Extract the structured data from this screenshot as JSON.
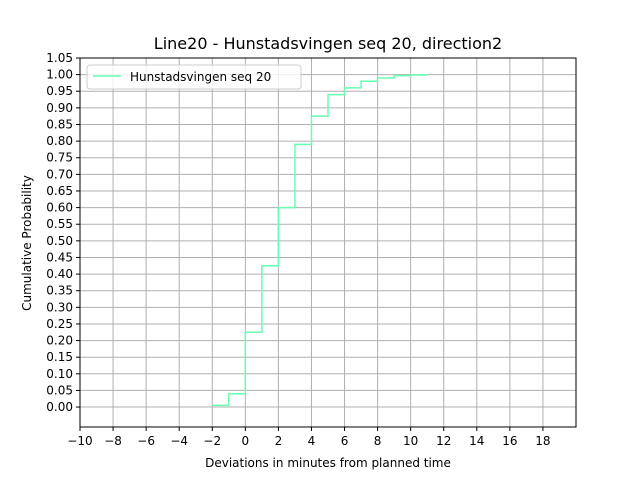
{
  "chart_data": {
    "type": "line",
    "drawstyle": "steps-post",
    "title": "Line20 - Hunstadsvingen seq 20, direction2",
    "xlabel": "Deviations in minutes from planned time",
    "ylabel": "Cumulative Probability",
    "xlim": [
      -10,
      20
    ],
    "ylim": [
      -0.06,
      1.05
    ],
    "grid": true,
    "legend_position": "top-left",
    "xticks": [
      -10,
      -8,
      -6,
      -4,
      -2,
      0,
      2,
      4,
      6,
      8,
      10,
      12,
      14,
      16,
      18
    ],
    "xtick_labels": [
      "−10",
      "−8",
      "−6",
      "−4",
      "−2",
      "0",
      "2",
      "4",
      "6",
      "8",
      "10",
      "12",
      "14",
      "16",
      "18"
    ],
    "yticks": [
      0.0,
      0.05,
      0.1,
      0.15,
      0.2,
      0.25,
      0.3,
      0.35,
      0.4,
      0.45,
      0.5,
      0.55,
      0.6,
      0.65,
      0.7,
      0.75,
      0.8,
      0.85,
      0.9,
      0.95,
      1.0,
      1.05
    ],
    "ytick_labels": [
      "0.00",
      "0.05",
      "0.10",
      "0.15",
      "0.20",
      "0.25",
      "0.30",
      "0.35",
      "0.40",
      "0.45",
      "0.50",
      "0.55",
      "0.60",
      "0.65",
      "0.70",
      "0.75",
      "0.80",
      "0.85",
      "0.90",
      "0.95",
      "1.00",
      "1.05"
    ],
    "series": [
      {
        "name": "Hunstadsvingen seq 20",
        "color": "#66ffb2",
        "x": [
          -2,
          -1,
          0,
          1,
          2,
          3,
          4,
          5,
          6,
          7,
          8,
          9,
          10,
          11
        ],
        "y": [
          0.005,
          0.04,
          0.225,
          0.425,
          0.6,
          0.79,
          0.875,
          0.94,
          0.96,
          0.98,
          0.99,
          0.997,
          0.999,
          1.0
        ]
      }
    ]
  }
}
